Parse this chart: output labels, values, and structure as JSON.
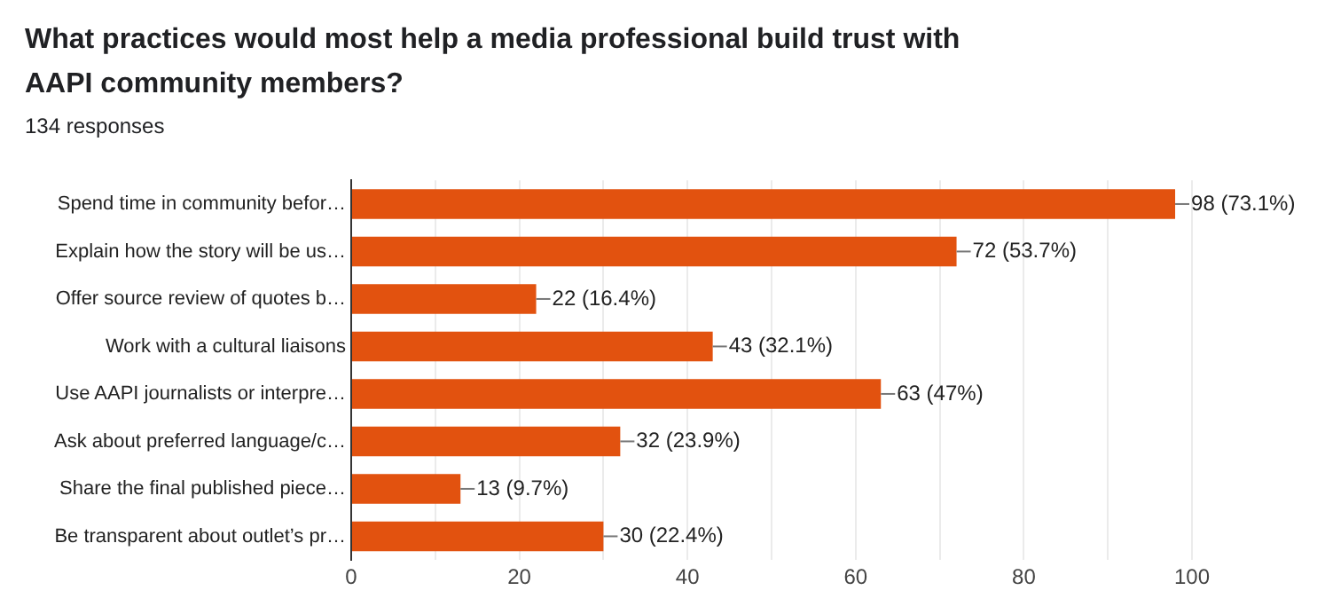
{
  "chart_data": {
    "type": "bar",
    "orientation": "horizontal",
    "title": "What practices would most help a media professional build trust with AAPI community members?",
    "subtitle": "134 responses",
    "categories": [
      "Spend time in community befor…",
      "Explain how the story will be us…",
      "Offer source review of quotes b…",
      "Work with a cultural liaisons",
      "Use AAPI journalists or interpre…",
      "Ask about preferred language/c…",
      "Share the final published piece…",
      "Be transparent about outlet’s pr…"
    ],
    "values": [
      98,
      72,
      22,
      43,
      63,
      32,
      13,
      30
    ],
    "value_labels": [
      "98 (73.1%)",
      "72 (53.7%)",
      "22 (16.4%)",
      "43 (32.1%)",
      "63 (47%)",
      "32 (23.9%)",
      "13 (9.7%)",
      "30 (22.4%)"
    ],
    "color": "#e2520f",
    "xlim": [
      0,
      100
    ],
    "xticks": [
      0,
      {
        "value": 10,
        "label": null
      },
      20,
      {
        "value": 30,
        "label": null
      },
      40,
      {
        "value": 50,
        "label": null
      },
      60,
      {
        "value": 70,
        "label": null
      },
      80,
      {
        "value": 90,
        "label": null
      },
      100
    ],
    "grid": "x",
    "legend": false
  }
}
